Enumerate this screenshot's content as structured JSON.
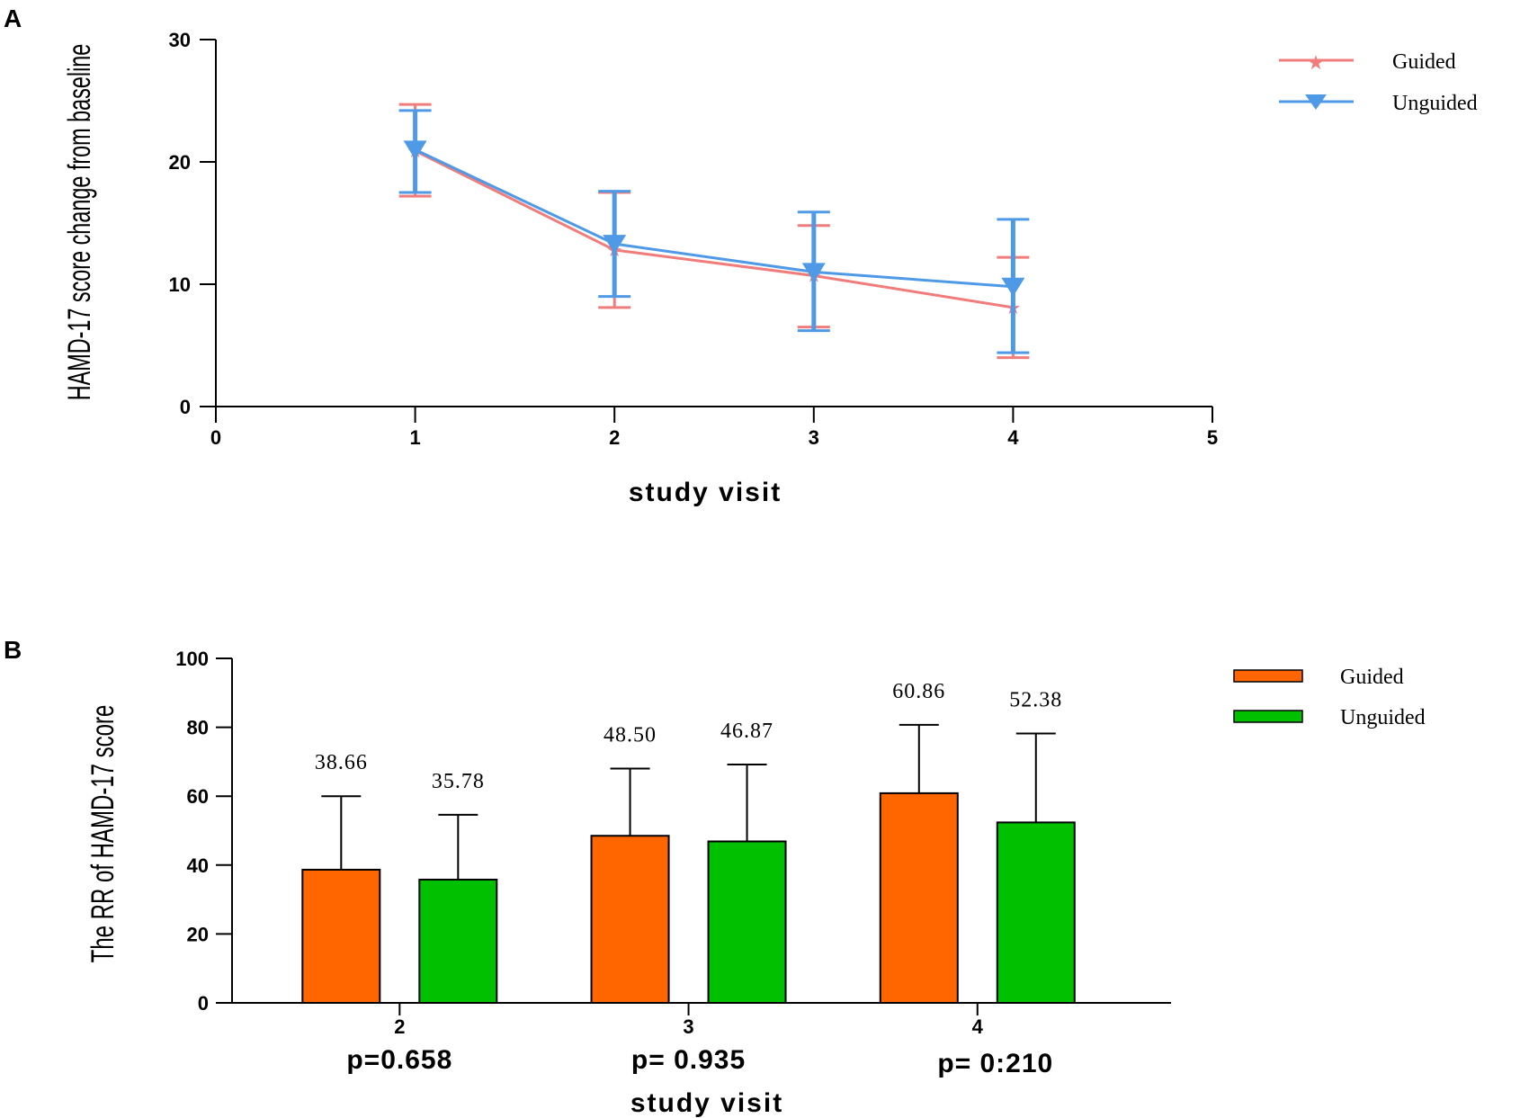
{
  "colors": {
    "guided_line": "#f07c7c",
    "unguided_line": "#4f9ae6",
    "guided_bar": "#ff6600",
    "unguided_bar": "#00c000",
    "axis": "#000000"
  },
  "chart_data": [
    {
      "panel": "A",
      "type": "line",
      "xlabel": "study visit",
      "ylabel": "HAMD-17 score change from baseline",
      "xlim": [
        0,
        5
      ],
      "ylim": [
        0,
        30
      ],
      "xticks": [
        "0",
        "1",
        "2",
        "3",
        "4",
        "5"
      ],
      "yticks": [
        "0",
        "10",
        "20",
        "30"
      ],
      "legend": [
        "Guided",
        "Unguided"
      ],
      "legend_position": "top-right",
      "x": [
        1,
        2,
        3,
        4
      ],
      "series": [
        {
          "name": "Guided",
          "values": [
            20.9,
            12.8,
            10.7,
            8.1
          ],
          "error_upper": [
            24.7,
            17.5,
            14.8,
            12.2
          ],
          "error_lower": [
            17.2,
            8.1,
            6.5,
            4.0
          ]
        },
        {
          "name": "Unguided",
          "values": [
            21.0,
            13.3,
            11.0,
            9.8
          ],
          "error_upper": [
            24.2,
            17.6,
            15.9,
            15.3
          ],
          "error_lower": [
            17.5,
            9.0,
            6.2,
            4.4
          ]
        }
      ]
    },
    {
      "panel": "B",
      "type": "bar",
      "xlabel": "study visit",
      "ylabel": "The RR of HAMD-17 score",
      "categories": [
        "2",
        "3",
        "4"
      ],
      "ylim": [
        0,
        100
      ],
      "yticks": [
        "0",
        "20",
        "40",
        "60",
        "80",
        "100"
      ],
      "legend": [
        "Guided",
        "Unguided"
      ],
      "legend_position": "top-right",
      "series": [
        {
          "name": "Guided",
          "values": [
            38.66,
            48.5,
            60.86
          ],
          "labels": [
            "38.66",
            "48.50",
            "60.86"
          ],
          "error_upper": [
            60.0,
            68.0,
            80.7
          ]
        },
        {
          "name": "Unguided",
          "values": [
            35.78,
            46.87,
            52.38
          ],
          "labels": [
            "35.78",
            "46.87",
            "52.38"
          ],
          "error_upper": [
            54.6,
            69.2,
            78.2
          ]
        }
      ],
      "p_values": [
        "p=0.658",
        "p= 0.935",
        "p= 0:210"
      ]
    }
  ]
}
